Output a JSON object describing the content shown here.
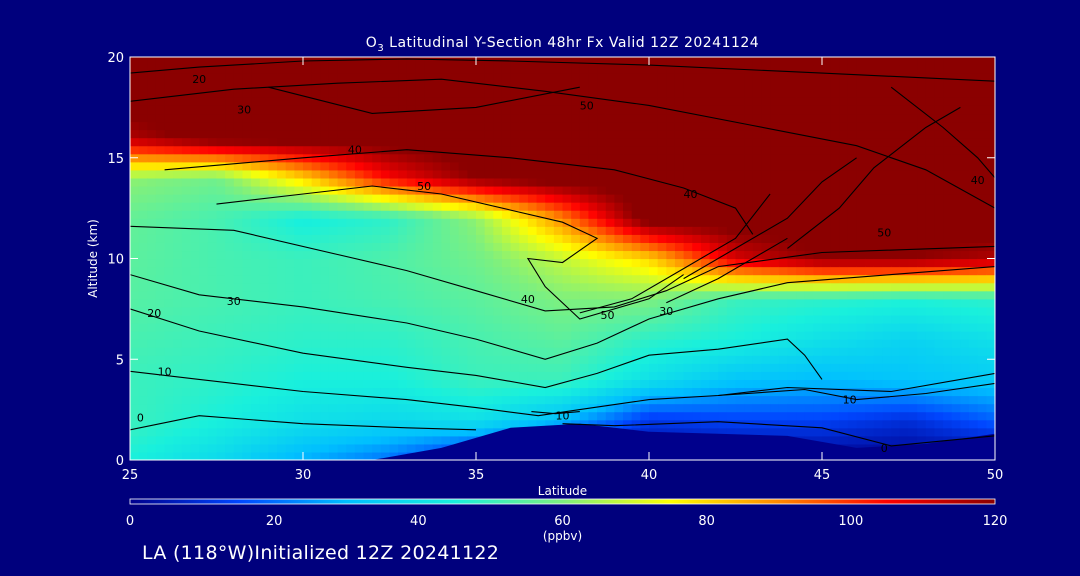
{
  "title": {
    "prefix": "O",
    "subscript": "3",
    "rest": " Latitudinal Y-Section 48hr  Fx Valid 12Z 20241124"
  },
  "footer_text": "LA (118°W)Initialized 12Z 20241122",
  "chart_data": {
    "type": "heatmap",
    "xlabel": "Latitude",
    "ylabel": "Altitude (km)",
    "xlim": [
      25,
      50
    ],
    "ylim": [
      0,
      20
    ],
    "x_ticks": [
      25,
      30,
      35,
      40,
      45,
      50
    ],
    "y_ticks": [
      0,
      5,
      10,
      15,
      20
    ],
    "colorbar": {
      "label": "(ppbv)",
      "range": [
        0,
        120
      ],
      "ticks": [
        0,
        20,
        40,
        60,
        80,
        100,
        120
      ],
      "colors": [
        "#00008c",
        "#0046ff",
        "#00bfff",
        "#19f0dc",
        "#7ef07e",
        "#ffff00",
        "#ff8800",
        "#ff0000",
        "#8b0000"
      ]
    },
    "field": {
      "x": [
        25,
        27.5,
        30,
        32.5,
        35,
        37.5,
        40,
        42.5,
        45,
        47.5,
        50
      ],
      "y": [
        0,
        2,
        4,
        6,
        8,
        10,
        12,
        14,
        16,
        18,
        20
      ],
      "z": [
        [
          45,
          38,
          28,
          20,
          5,
          0,
          0,
          0,
          0,
          0,
          0
        ],
        [
          50,
          45,
          40,
          38,
          40,
          30,
          12,
          14,
          14,
          10,
          18
        ],
        [
          50,
          48,
          45,
          45,
          50,
          50,
          40,
          32,
          30,
          32,
          34
        ],
        [
          52,
          50,
          48,
          48,
          52,
          55,
          48,
          45,
          40,
          36,
          40
        ],
        [
          54,
          52,
          50,
          52,
          55,
          60,
          60,
          50,
          48,
          46,
          48
        ],
        [
          55,
          52,
          50,
          53,
          58,
          68,
          80,
          110,
          120,
          120,
          115
        ],
        [
          56,
          52,
          44,
          48,
          62,
          90,
          125,
          125,
          125,
          125,
          125
        ],
        [
          62,
          58,
          80,
          105,
          120,
          125,
          125,
          125,
          125,
          125,
          125
        ],
        [
          115,
          125,
          125,
          125,
          125,
          125,
          125,
          125,
          125,
          125,
          125
        ],
        [
          125,
          125,
          125,
          125,
          125,
          125,
          125,
          125,
          125,
          125,
          125
        ],
        [
          125,
          125,
          125,
          125,
          125,
          125,
          125,
          125,
          125,
          125,
          125
        ]
      ]
    },
    "terrain": [
      {
        "x": 25,
        "y": 0
      },
      {
        "x": 32,
        "y": 0
      },
      {
        "x": 34,
        "y": 0.6
      },
      {
        "x": 36,
        "y": 1.6
      },
      {
        "x": 38,
        "y": 1.8
      },
      {
        "x": 40,
        "y": 1.4
      },
      {
        "x": 42,
        "y": 1.3
      },
      {
        "x": 44,
        "y": 1.2
      },
      {
        "x": 46,
        "y": 0.6
      },
      {
        "x": 48,
        "y": 0.8
      },
      {
        "x": 50,
        "y": 1.3
      }
    ],
    "contours": [
      {
        "label": "0",
        "points": [
          [
            25,
            1.5
          ],
          [
            27,
            2.2
          ],
          [
            30,
            1.8
          ],
          [
            33,
            1.6
          ],
          [
            35,
            1.5
          ]
        ],
        "label_at": [
          25.3,
          2.1
        ]
      },
      {
        "label": "0",
        "points": [
          [
            37.5,
            1.8
          ],
          [
            39,
            1.7
          ],
          [
            42,
            1.9
          ],
          [
            45,
            1.6
          ],
          [
            47,
            0.7
          ],
          [
            50,
            1.2
          ]
        ],
        "label_at": [
          46.8,
          0.6
        ]
      },
      {
        "label": "10",
        "points": [
          [
            25,
            4.4
          ],
          [
            27,
            4.0
          ],
          [
            30,
            3.4
          ],
          [
            33,
            3.0
          ],
          [
            35,
            2.6
          ],
          [
            36.8,
            2.2
          ],
          [
            38,
            2.5
          ],
          [
            40,
            3.0
          ],
          [
            42,
            3.2
          ],
          [
            44,
            3.6
          ],
          [
            47,
            3.4
          ],
          [
            50,
            4.3
          ]
        ],
        "label_at": [
          26.0,
          4.4
        ]
      },
      {
        "label": "10",
        "points": [
          [
            36.6,
            2.4
          ],
          [
            37.3,
            2.3
          ],
          [
            38,
            2.4
          ]
        ],
        "label_at": [
          37.5,
          2.2
        ]
      },
      {
        "label": "10",
        "points": [
          [
            42,
            3.2
          ],
          [
            44.5,
            3.5
          ],
          [
            46,
            3.0
          ],
          [
            48,
            3.3
          ],
          [
            50,
            3.8
          ]
        ],
        "label_at": [
          45.8,
          3.0
        ]
      },
      {
        "label": "20",
        "points": [
          [
            25,
            7.5
          ],
          [
            27,
            6.4
          ],
          [
            30,
            5.3
          ],
          [
            33,
            4.6
          ],
          [
            35,
            4.2
          ],
          [
            37,
            3.6
          ],
          [
            38.5,
            4.3
          ],
          [
            40,
            5.2
          ],
          [
            42,
            5.5
          ],
          [
            44,
            6.0
          ],
          [
            44.5,
            5.2
          ],
          [
            45,
            4.0
          ]
        ],
        "label_at": [
          25.7,
          7.3
        ]
      },
      {
        "label": "20",
        "points": [
          [
            25,
            19.2
          ],
          [
            27,
            19.5
          ],
          [
            30,
            19.8
          ],
          [
            33,
            19.9
          ],
          [
            36,
            19.8
          ],
          [
            40,
            19.6
          ],
          [
            45,
            19.2
          ],
          [
            50,
            18.8
          ]
        ],
        "label_at": [
          27.0,
          18.9
        ]
      },
      {
        "label": "30",
        "points": [
          [
            25,
            9.2
          ],
          [
            27,
            8.2
          ],
          [
            30,
            7.6
          ],
          [
            33,
            6.8
          ],
          [
            35,
            6.0
          ],
          [
            37,
            5.0
          ],
          [
            38.5,
            5.8
          ],
          [
            40,
            7.0
          ],
          [
            42,
            8.0
          ],
          [
            44,
            8.8
          ],
          [
            47,
            9.2
          ],
          [
            50,
            9.6
          ]
        ],
        "label_at": [
          28.0,
          7.9
        ]
      },
      {
        "label": "30",
        "points": [
          [
            25,
            17.8
          ],
          [
            28,
            18.4
          ],
          [
            31,
            18.7
          ],
          [
            34,
            18.9
          ],
          [
            37,
            18.3
          ],
          [
            40,
            17.6
          ],
          [
            43,
            16.6
          ],
          [
            46,
            15.6
          ],
          [
            48,
            14.4
          ],
          [
            50,
            12.5
          ]
        ],
        "label_at": [
          28.3,
          17.4
        ]
      },
      {
        "label": "40",
        "points": [
          [
            25,
            11.6
          ],
          [
            28,
            11.4
          ],
          [
            31,
            10.2
          ],
          [
            33,
            9.4
          ],
          [
            35,
            8.4
          ],
          [
            37,
            7.4
          ],
          [
            39,
            7.6
          ],
          [
            40.5,
            8.4
          ],
          [
            42,
            9.6
          ],
          [
            45,
            10.3
          ],
          [
            50,
            10.6
          ]
        ],
        "label_at": [
          36.5,
          8.0
        ]
      },
      {
        "label": "40",
        "points": [
          [
            26,
            14.4
          ],
          [
            30,
            15.0
          ],
          [
            33,
            15.4
          ],
          [
            36,
            15.0
          ],
          [
            39,
            14.4
          ],
          [
            41,
            13.5
          ],
          [
            42.5,
            12.5
          ],
          [
            43,
            11.2
          ]
        ],
        "label_at": [
          31.5,
          15.4
        ]
      },
      {
        "label": "50",
        "points": [
          [
            27.5,
            12.7
          ],
          [
            30,
            13.2
          ],
          [
            32,
            13.6
          ],
          [
            34,
            13.2
          ],
          [
            36,
            12.4
          ],
          [
            37.5,
            11.8
          ],
          [
            38.5,
            11.0
          ],
          [
            37.5,
            9.8
          ],
          [
            36.5,
            10.0
          ],
          [
            37,
            8.6
          ],
          [
            38,
            7.0
          ],
          [
            40,
            8.0
          ],
          [
            41,
            9.2
          ]
        ],
        "label_at": [
          33.5,
          13.6
        ]
      },
      {
        "label": "50",
        "points": [
          [
            38,
            7.3
          ],
          [
            39.5,
            8.0
          ],
          [
            41,
            9.5
          ],
          [
            42.5,
            11.0
          ],
          [
            43.5,
            13.2
          ]
        ],
        "label_at": [
          38.8,
          7.2
        ]
      },
      {
        "label": "40",
        "points": [
          [
            41,
            9.0
          ],
          [
            42.5,
            10.5
          ],
          [
            44,
            12.0
          ],
          [
            45,
            13.8
          ],
          [
            46,
            15.0
          ]
        ],
        "label_at": [
          41.2,
          13.2
        ]
      },
      {
        "label": "50",
        "points": [
          [
            44,
            10.5
          ],
          [
            45.5,
            12.5
          ],
          [
            46.5,
            14.5
          ],
          [
            48,
            16.5
          ],
          [
            49,
            17.5
          ]
        ],
        "label_at": [
          46.8,
          11.3
        ]
      },
      {
        "label": "40",
        "points": [
          [
            47,
            18.5
          ],
          [
            48.5,
            16.5
          ],
          [
            49.5,
            15.0
          ],
          [
            50,
            14.0
          ]
        ],
        "label_at": [
          49.5,
          13.9
        ]
      },
      {
        "label": "30",
        "points": [
          [
            40.5,
            7.8
          ],
          [
            42,
            9.0
          ],
          [
            44,
            11.0
          ]
        ],
        "label_at": [
          40.5,
          7.4
        ]
      },
      {
        "label": "50",
        "points": [
          [
            29,
            18.5
          ],
          [
            32,
            17.2
          ],
          [
            35,
            17.5
          ],
          [
            38,
            18.5
          ]
        ],
        "label_at": [
          38.2,
          17.6
        ]
      }
    ]
  }
}
